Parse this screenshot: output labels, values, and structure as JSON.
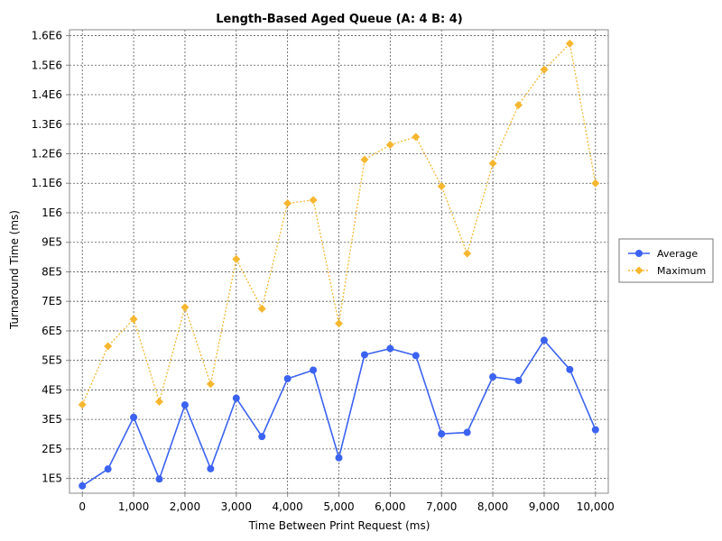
{
  "chart_data": {
    "type": "line",
    "title": "Length-Based Aged Queue (A: 4 B: 4)",
    "xlabel": "Time Between Print Request (ms)",
    "ylabel": "Turnaround Time (ms)",
    "xlim": [
      -250,
      10250
    ],
    "ylim": [
      50000,
      1620000
    ],
    "x_ticks": [
      0,
      1000,
      2000,
      3000,
      4000,
      5000,
      6000,
      7000,
      8000,
      9000,
      10000
    ],
    "x_tick_labels": [
      "0",
      "1,000",
      "2,000",
      "3,000",
      "4,000",
      "5,000",
      "6,000",
      "7,000",
      "8,000",
      "9,000",
      "10,000"
    ],
    "y_ticks": [
      100000,
      200000,
      300000,
      400000,
      500000,
      600000,
      700000,
      800000,
      900000,
      1000000,
      1100000,
      1200000,
      1300000,
      1400000,
      1500000,
      1600000
    ],
    "y_tick_labels": [
      "1E5",
      "2E5",
      "3E5",
      "4E5",
      "5E5",
      "6E5",
      "7E5",
      "8E5",
      "9E5",
      "1E6",
      "1.1E6",
      "1.2E6",
      "1.3E6",
      "1.4E6",
      "1.5E6",
      "1.6E6"
    ],
    "grid": true,
    "legend_position": "right",
    "x": [
      0,
      500,
      1000,
      1500,
      2000,
      2500,
      3000,
      3500,
      4000,
      4500,
      5000,
      5500,
      6000,
      6500,
      7000,
      7500,
      8000,
      8500,
      9000,
      9500,
      10000
    ],
    "series": [
      {
        "name": "Average",
        "color": "#3b62f0",
        "line_style": "solid",
        "marker": "circle",
        "values": [
          75000,
          132000,
          307000,
          98000,
          349000,
          133000,
          372000,
          242000,
          438000,
          467000,
          170000,
          519000,
          540000,
          516000,
          251000,
          256000,
          444000,
          432000,
          568000,
          469000,
          265000
        ]
      },
      {
        "name": "Maximum",
        "color": "#f5b730",
        "line_style": "dotted",
        "marker": "diamond",
        "values": [
          350000,
          548000,
          640000,
          360000,
          680000,
          420000,
          843000,
          675000,
          1032000,
          1043000,
          625000,
          1180000,
          1230000,
          1257000,
          1090000,
          862000,
          1167000,
          1365000,
          1485000,
          1573000,
          1100000
        ]
      }
    ]
  }
}
